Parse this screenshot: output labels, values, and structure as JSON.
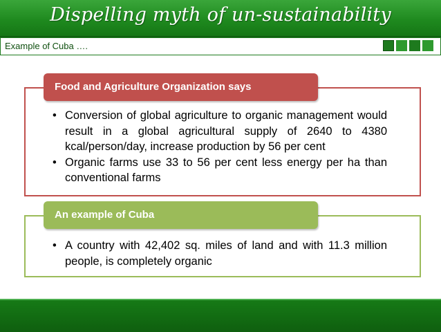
{
  "header": {
    "title": "Dispelling myth of un-sustainability"
  },
  "subheader": {
    "text": "Example of Cuba …."
  },
  "sections": [
    {
      "heading": "Food and Agriculture Organization says",
      "color": "#c0504d",
      "bullets": [
        "Conversion of global agriculture to organic management would result in a global agricultural supply of 2640 to 4380 kcal/person/day, increase production by 56 per cent",
        "Organic farms use 33 to 56 per cent less energy per ha than conventional farms"
      ]
    },
    {
      "heading": "An example of Cuba",
      "color": "#9bbb59",
      "bullets": [
        "A country with 42,402 sq. miles of land and with 11.3 million people, is completely organic"
      ]
    }
  ],
  "theme": {
    "primary": "#1e7a1e",
    "accent": "#2e9a2e"
  }
}
